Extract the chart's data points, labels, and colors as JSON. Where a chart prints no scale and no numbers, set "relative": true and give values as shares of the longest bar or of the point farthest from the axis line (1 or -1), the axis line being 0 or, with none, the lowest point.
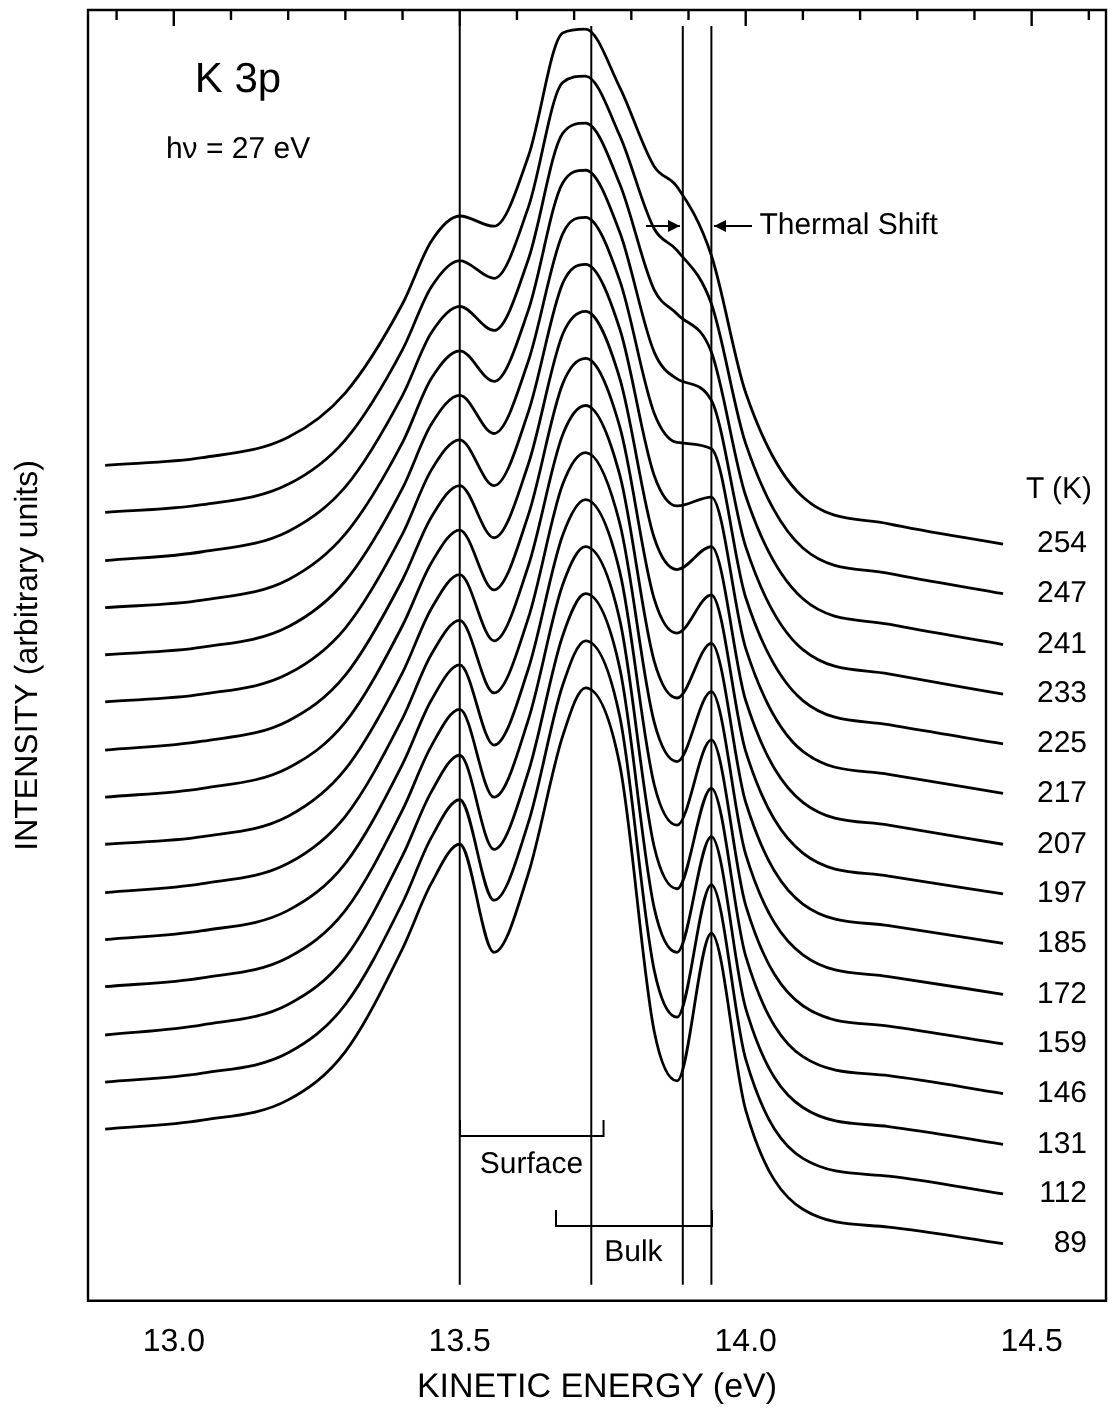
{
  "chart_data": {
    "type": "line",
    "title": "K 3p",
    "subtitle": "hν = 27 eV",
    "xlabel": "KINETIC ENERGY (eV)",
    "ylabel": "INTENSITY (arbitrary units)",
    "legend_title": "T (K)",
    "relative": true,
    "legend": false,
    "grid": false,
    "marker": "none",
    "line_style": "solid",
    "tick_labels": "x",
    "xlim": [
      12.85,
      14.63
    ],
    "xticks": [
      {
        "value": 12.9,
        "label": null
      },
      {
        "value": 13,
        "label": "13.0"
      },
      {
        "value": 13.1,
        "label": null
      },
      {
        "value": 13.2,
        "label": null
      },
      {
        "value": 13.3,
        "label": null
      },
      {
        "value": 13.4,
        "label": null
      },
      13.5,
      {
        "value": 13.6,
        "label": null
      },
      {
        "value": 13.7,
        "label": null
      },
      {
        "value": 13.8,
        "label": null
      },
      {
        "value": 13.9,
        "label": null
      },
      {
        "value": 14,
        "label": "14.0"
      },
      {
        "value": 14.1,
        "label": null
      },
      {
        "value": 14.2,
        "label": null
      },
      {
        "value": 14.3,
        "label": null
      },
      {
        "value": 14.4,
        "label": null
      },
      14.5,
      {
        "value": 14.6,
        "label": null
      }
    ],
    "x": [
      12.88,
      13.05,
      13.2,
      13.3,
      13.4,
      13.45,
      13.5,
      13.56,
      13.62,
      13.68,
      13.72,
      13.78,
      13.84,
      13.88,
      13.94,
      14.0,
      14.1,
      14.25,
      14.45
    ],
    "series": [
      {
        "name": "254",
        "color": "#000000",
        "values": [
          0.657,
          0.663,
          0.679,
          0.714,
          0.784,
          0.833,
          0.853,
          0.845,
          0.9,
          0.997,
          1.0,
          0.954,
          0.892,
          0.876,
          0.822,
          0.714,
          0.632,
          0.611,
          0.595
        ]
      },
      {
        "name": "247",
        "color": "#000000",
        "values": [
          0.62,
          0.626,
          0.642,
          0.677,
          0.748,
          0.797,
          0.818,
          0.804,
          0.86,
          0.958,
          0.963,
          0.916,
          0.843,
          0.826,
          0.784,
          0.674,
          0.592,
          0.572,
          0.556
        ]
      },
      {
        "name": "241",
        "color": "#000000",
        "values": [
          0.582,
          0.589,
          0.605,
          0.64,
          0.712,
          0.761,
          0.782,
          0.763,
          0.819,
          0.918,
          0.926,
          0.878,
          0.795,
          0.776,
          0.746,
          0.633,
          0.552,
          0.532,
          0.516
        ]
      },
      {
        "name": "233",
        "color": "#000000",
        "values": [
          0.545,
          0.551,
          0.567,
          0.603,
          0.675,
          0.725,
          0.747,
          0.723,
          0.779,
          0.879,
          0.889,
          0.84,
          0.746,
          0.725,
          0.708,
          0.593,
          0.512,
          0.493,
          0.477
        ]
      },
      {
        "name": "225",
        "color": "#000000",
        "values": [
          0.508,
          0.514,
          0.53,
          0.566,
          0.639,
          0.689,
          0.712,
          0.682,
          0.739,
          0.839,
          0.852,
          0.802,
          0.698,
          0.675,
          0.67,
          0.553,
          0.472,
          0.453,
          0.438
        ]
      },
      {
        "name": "217",
        "color": "#000000",
        "values": [
          0.471,
          0.477,
          0.493,
          0.529,
          0.603,
          0.653,
          0.677,
          0.641,
          0.699,
          0.8,
          0.815,
          0.764,
          0.649,
          0.625,
          0.632,
          0.513,
          0.432,
          0.414,
          0.399
        ]
      },
      {
        "name": "207",
        "color": "#000000",
        "values": [
          0.433,
          0.44,
          0.456,
          0.492,
          0.567,
          0.616,
          0.641,
          0.6,
          0.658,
          0.76,
          0.778,
          0.725,
          0.6,
          0.575,
          0.593,
          0.472,
          0.392,
          0.374,
          0.359
        ]
      },
      {
        "name": "197",
        "color": "#000000",
        "values": [
          0.396,
          0.403,
          0.419,
          0.455,
          0.531,
          0.58,
          0.606,
          0.559,
          0.618,
          0.721,
          0.741,
          0.687,
          0.552,
          0.525,
          0.555,
          0.432,
          0.352,
          0.334,
          0.32
        ]
      },
      {
        "name": "185",
        "color": "#000000",
        "values": [
          0.359,
          0.365,
          0.381,
          0.418,
          0.494,
          0.544,
          0.571,
          0.519,
          0.578,
          0.681,
          0.704,
          0.649,
          0.503,
          0.474,
          0.517,
          0.392,
          0.312,
          0.295,
          0.281
        ]
      },
      {
        "name": "172",
        "color": "#000000",
        "values": [
          0.321,
          0.328,
          0.344,
          0.381,
          0.458,
          0.508,
          0.535,
          0.478,
          0.537,
          0.642,
          0.667,
          0.611,
          0.455,
          0.424,
          0.479,
          0.351,
          0.272,
          0.255,
          0.241
        ]
      },
      {
        "name": "159",
        "color": "#000000",
        "values": [
          0.284,
          0.291,
          0.307,
          0.344,
          0.422,
          0.472,
          0.5,
          0.437,
          0.497,
          0.602,
          0.63,
          0.573,
          0.406,
          0.374,
          0.441,
          0.311,
          0.232,
          0.216,
          0.202
        ]
      },
      {
        "name": "146",
        "color": "#000000",
        "values": [
          0.247,
          0.254,
          0.27,
          0.307,
          0.386,
          0.436,
          0.465,
          0.396,
          0.457,
          0.563,
          0.593,
          0.535,
          0.357,
          0.324,
          0.403,
          0.271,
          0.192,
          0.177,
          0.163
        ]
      },
      {
        "name": "131",
        "color": "#000000",
        "values": [
          0.209,
          0.217,
          0.233,
          0.27,
          0.35,
          0.4,
          0.429,
          0.355,
          0.416,
          0.523,
          0.556,
          0.497,
          0.309,
          0.274,
          0.365,
          0.23,
          0.152,
          0.137,
          0.123
        ]
      },
      {
        "name": "112",
        "color": "#000000",
        "values": [
          0.172,
          0.179,
          0.195,
          0.233,
          0.313,
          0.364,
          0.394,
          0.315,
          0.376,
          0.484,
          0.519,
          0.459,
          0.26,
          0.223,
          0.327,
          0.19,
          0.112,
          0.098,
          0.084
        ]
      },
      {
        "name": "89",
        "color": "#000000",
        "values": [
          0.135,
          0.142,
          0.158,
          0.196,
          0.277,
          0.328,
          0.359,
          0.274,
          0.336,
          0.444,
          0.482,
          0.421,
          0.212,
          0.173,
          0.289,
          0.15,
          0.072,
          0.058,
          0.045
        ]
      }
    ],
    "ref_lines": [
      {
        "axis": "x",
        "value": 13.5,
        "label": null
      },
      {
        "axis": "x",
        "value": 13.73,
        "label": null
      },
      {
        "axis": "x",
        "value": 13.89,
        "label": null
      },
      {
        "axis": "x",
        "value": 13.94,
        "label": null
      }
    ],
    "annotations": [
      "Surface",
      "Bulk",
      "Thermal Shift"
    ]
  }
}
